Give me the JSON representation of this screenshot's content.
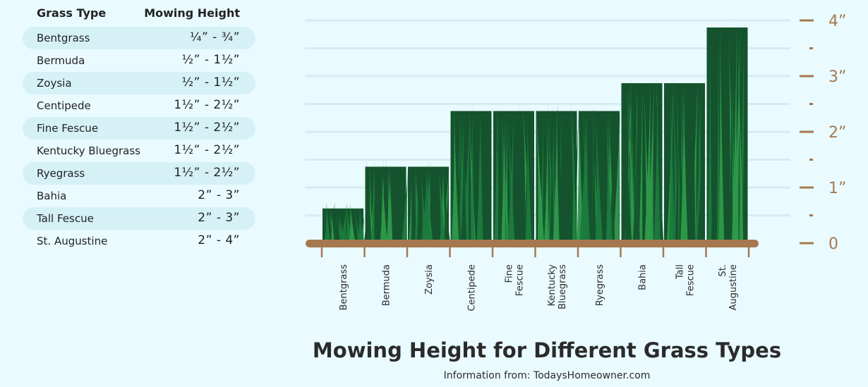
{
  "table": {
    "header_type": "Grass Type",
    "header_height": "Mowing Height",
    "rows": [
      {
        "type": "Bentgrass",
        "height": "¼” - ¾”"
      },
      {
        "type": "Bermuda",
        "height": "½” - 1½”"
      },
      {
        "type": "Zoysia",
        "height": "½” - 1½”"
      },
      {
        "type": "Centipede",
        "height": "1½” - 2½”"
      },
      {
        "type": "Fine Fescue",
        "height": "1½” - 2½”"
      },
      {
        "type": "Kentucky Bluegrass",
        "height": "1½” - 2½”"
      },
      {
        "type": "Ryegrass",
        "height": "1½” - 2½”"
      },
      {
        "type": "Bahia",
        "height": "2” - 3”"
      },
      {
        "type": "Tall Fescue",
        "height": "2” - 3”"
      },
      {
        "type": "St. Augustine",
        "height": "2” - 4”"
      }
    ]
  },
  "title": "Mowing Height for Different Grass Types",
  "subtitle": "Information from: TodaysHomeowner.com",
  "colors": {
    "background": "#e9fbff",
    "row_shade": "#d5f1f5",
    "axis": "#a6784f",
    "soil": "#a6784f",
    "grass_dark": "#14532d",
    "grass_mid": "#1c7a3e",
    "grass_light": "#2e9a4a",
    "gridline": "#d6ecf0"
  },
  "chart_data": {
    "type": "bar",
    "categories": [
      [
        "Bentgrass"
      ],
      [
        "Bermuda"
      ],
      [
        "Zoysia"
      ],
      [
        "Centipede"
      ],
      [
        "Fine",
        "Fescue"
      ],
      [
        "Kentucky",
        "Bluegrass"
      ],
      [
        "Ryegrass"
      ],
      [
        "Bahia"
      ],
      [
        "Tall",
        "Fescue"
      ],
      [
        "St.",
        "Augustine"
      ]
    ],
    "values": [
      0.75,
      1.5,
      1.5,
      2.5,
      2.5,
      2.5,
      2.5,
      3,
      3,
      4
    ],
    "y_ticks": [
      0,
      1,
      2,
      3,
      4
    ],
    "y_tick_labels": [
      "0",
      "1”",
      "2”",
      "3”",
      "4”"
    ],
    "ylim": [
      0,
      4
    ],
    "grid": true,
    "axis_side": "right"
  }
}
